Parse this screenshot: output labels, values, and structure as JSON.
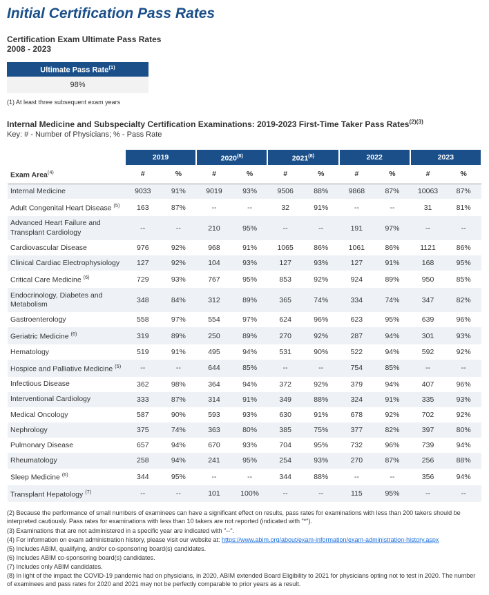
{
  "title": "Initial Certification Pass Rates",
  "ultimate": {
    "heading_line1": "Certification Exam Ultimate Pass Rates",
    "heading_line2": "2008 - 2023",
    "header": "Ultimate Pass Rate",
    "header_sup": "(1)",
    "value": "98%",
    "footnote": "(1) At least three subsequent exam years"
  },
  "section": {
    "heading_main": "Internal Medicine and Subspecialty Certification Examinations: 2019-2023 First-Time Taker Pass Rates",
    "heading_sup": "(2)(3)",
    "key": "Key: # - Number of Physicians; % - Pass Rate"
  },
  "table": {
    "exam_area_label": "Exam Area",
    "exam_area_sup": "(4)",
    "col_num": "#",
    "col_pct": "%",
    "years": [
      {
        "label": "2019",
        "sup": ""
      },
      {
        "label": "2020",
        "sup": "(8)"
      },
      {
        "label": "2021",
        "sup": "(8)"
      },
      {
        "label": "2022",
        "sup": ""
      },
      {
        "label": "2023",
        "sup": ""
      }
    ],
    "rows": [
      {
        "name": "Internal Medicine",
        "sup": "",
        "cells": [
          "9033",
          "91%",
          "9019",
          "93%",
          "9506",
          "88%",
          "9868",
          "87%",
          "10063",
          "87%"
        ]
      },
      {
        "name": "Adult Congenital Heart Disease",
        "sup": "(5)",
        "cells": [
          "163",
          "87%",
          "--",
          "--",
          "32",
          "91%",
          "--",
          "--",
          "31",
          "81%"
        ]
      },
      {
        "name": "Advanced Heart Failure and Transplant Cardiology",
        "sup": "",
        "cells": [
          "--",
          "--",
          "210",
          "95%",
          "--",
          "--",
          "191",
          "97%",
          "--",
          "--"
        ]
      },
      {
        "name": "Cardiovascular Disease",
        "sup": "",
        "cells": [
          "976",
          "92%",
          "968",
          "91%",
          "1065",
          "86%",
          "1061",
          "86%",
          "1121",
          "86%"
        ]
      },
      {
        "name": "Clinical Cardiac Electrophysiology",
        "sup": "",
        "cells": [
          "127",
          "92%",
          "104",
          "93%",
          "127",
          "93%",
          "127",
          "91%",
          "168",
          "95%"
        ]
      },
      {
        "name": "Critical Care Medicine",
        "sup": "(6)",
        "cells": [
          "729",
          "93%",
          "767",
          "95%",
          "853",
          "92%",
          "924",
          "89%",
          "950",
          "85%"
        ]
      },
      {
        "name": "Endocrinology, Diabetes and Metabolism",
        "sup": "",
        "cells": [
          "348",
          "84%",
          "312",
          "89%",
          "365",
          "74%",
          "334",
          "74%",
          "347",
          "82%"
        ]
      },
      {
        "name": "Gastroenterology",
        "sup": "",
        "cells": [
          "558",
          "97%",
          "554",
          "97%",
          "624",
          "96%",
          "623",
          "95%",
          "639",
          "96%"
        ]
      },
      {
        "name": "Geriatric Medicine",
        "sup": "(6)",
        "cells": [
          "319",
          "89%",
          "250",
          "89%",
          "270",
          "92%",
          "287",
          "94%",
          "301",
          "93%"
        ]
      },
      {
        "name": "Hematology",
        "sup": "",
        "cells": [
          "519",
          "91%",
          "495",
          "94%",
          "531",
          "90%",
          "522",
          "94%",
          "592",
          "92%"
        ]
      },
      {
        "name": "Hospice and Palliative Medicine",
        "sup": "(5)",
        "cells": [
          "--",
          "--",
          "644",
          "85%",
          "--",
          "--",
          "754",
          "85%",
          "--",
          "--"
        ]
      },
      {
        "name": "Infectious Disease",
        "sup": "",
        "cells": [
          "362",
          "98%",
          "364",
          "94%",
          "372",
          "92%",
          "379",
          "94%",
          "407",
          "96%"
        ]
      },
      {
        "name": "Interventional Cardiology",
        "sup": "",
        "cells": [
          "333",
          "87%",
          "314",
          "91%",
          "349",
          "88%",
          "324",
          "91%",
          "335",
          "93%"
        ]
      },
      {
        "name": "Medical Oncology",
        "sup": "",
        "cells": [
          "587",
          "90%",
          "593",
          "93%",
          "630",
          "91%",
          "678",
          "92%",
          "702",
          "92%"
        ]
      },
      {
        "name": "Nephrology",
        "sup": "",
        "cells": [
          "375",
          "74%",
          "363",
          "80%",
          "385",
          "75%",
          "377",
          "82%",
          "397",
          "80%"
        ]
      },
      {
        "name": "Pulmonary Disease",
        "sup": "",
        "cells": [
          "657",
          "94%",
          "670",
          "93%",
          "704",
          "95%",
          "732",
          "96%",
          "739",
          "94%"
        ]
      },
      {
        "name": "Rheumatology",
        "sup": "",
        "cells": [
          "258",
          "94%",
          "241",
          "95%",
          "254",
          "93%",
          "270",
          "87%",
          "256",
          "88%"
        ]
      },
      {
        "name": "Sleep Medicine",
        "sup": "(6)",
        "cells": [
          "344",
          "95%",
          "--",
          "--",
          "344",
          "88%",
          "--",
          "--",
          "356",
          "94%"
        ]
      },
      {
        "name": "Transplant Hepatology",
        "sup": "(7)",
        "cells": [
          "--",
          "--",
          "101",
          "100%",
          "--",
          "--",
          "115",
          "95%",
          "--",
          "--"
        ]
      }
    ]
  },
  "footnotes": {
    "f2": "(2) Because the performance of small numbers of examinees can have a significant effect on results, pass rates for examinations with less than 200 takers should be interpreted cautiously. Pass rates for examinations with less than 10 takers are not reported (indicated with \"*\").",
    "f3": "(3) Examinations that are not administered in a specific year are indicated with \"--\".",
    "f4_pre": "(4) For information on exam administration history, please visit our website at: ",
    "f4_link": "https://www.abim.org/about/exam-information/exam-administration-history.aspx",
    "f5": "(5) Includes ABIM, qualifying, and/or co-sponsoring board(s) candidates.",
    "f6": "(6) Includes ABIM co-sponsoring board(s) candidates.",
    "f7": "(7) Includes only ABIM candidates.",
    "f8": "(8) In light of the impact the COVID-19 pandemic had on physicians, in 2020, ABIM extended Board Eligibility to 2021 for physicians opting not to test in 2020. The number of examinees and pass rates for 2020 and 2021 may not be perfectly comparable to prior years as a result."
  }
}
